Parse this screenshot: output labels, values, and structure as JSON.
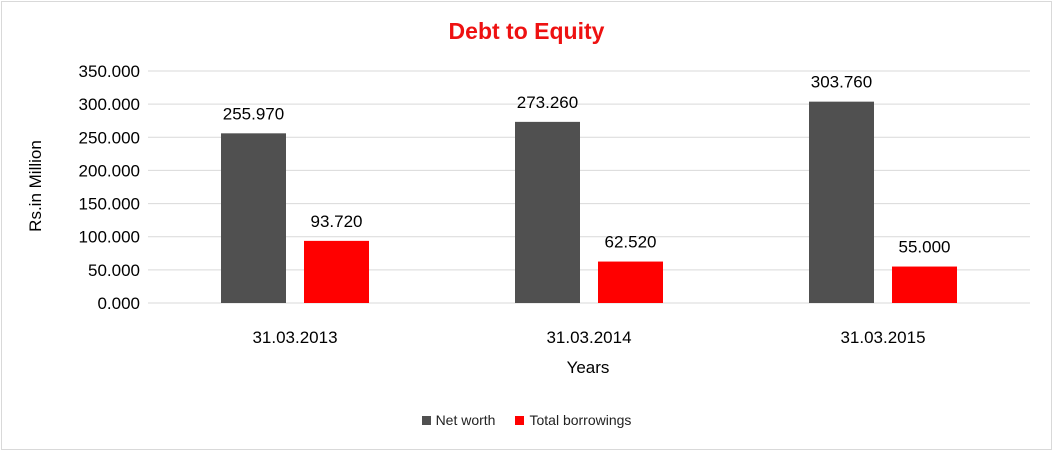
{
  "chart_data": {
    "type": "bar",
    "title": "Debt to Equity",
    "xlabel": "Years",
    "ylabel": "Rs.in Million",
    "categories": [
      "31.03.2013",
      "31.03.2014",
      "31.03.2015"
    ],
    "series": [
      {
        "name": "Net worth",
        "values": [
          255.97,
          273.26,
          303.76
        ],
        "labels": [
          "255.970",
          "273.260",
          "303.760"
        ],
        "color": "#505050"
      },
      {
        "name": "Total borrowings",
        "values": [
          93.72,
          62.52,
          55.0
        ],
        "labels": [
          "93.720",
          "62.520",
          "55.000"
        ],
        "color": "#ff0000"
      }
    ],
    "ylim": [
      0,
      350
    ],
    "yticks": [
      0,
      50,
      100,
      150,
      200,
      250,
      300,
      350
    ],
    "ytick_labels": [
      "0.000",
      "50.000",
      "100.000",
      "150.000",
      "200.000",
      "250.000",
      "300.000",
      "350.000"
    ],
    "grid": true,
    "legend": "bottom",
    "title_color": "#ee1111"
  }
}
